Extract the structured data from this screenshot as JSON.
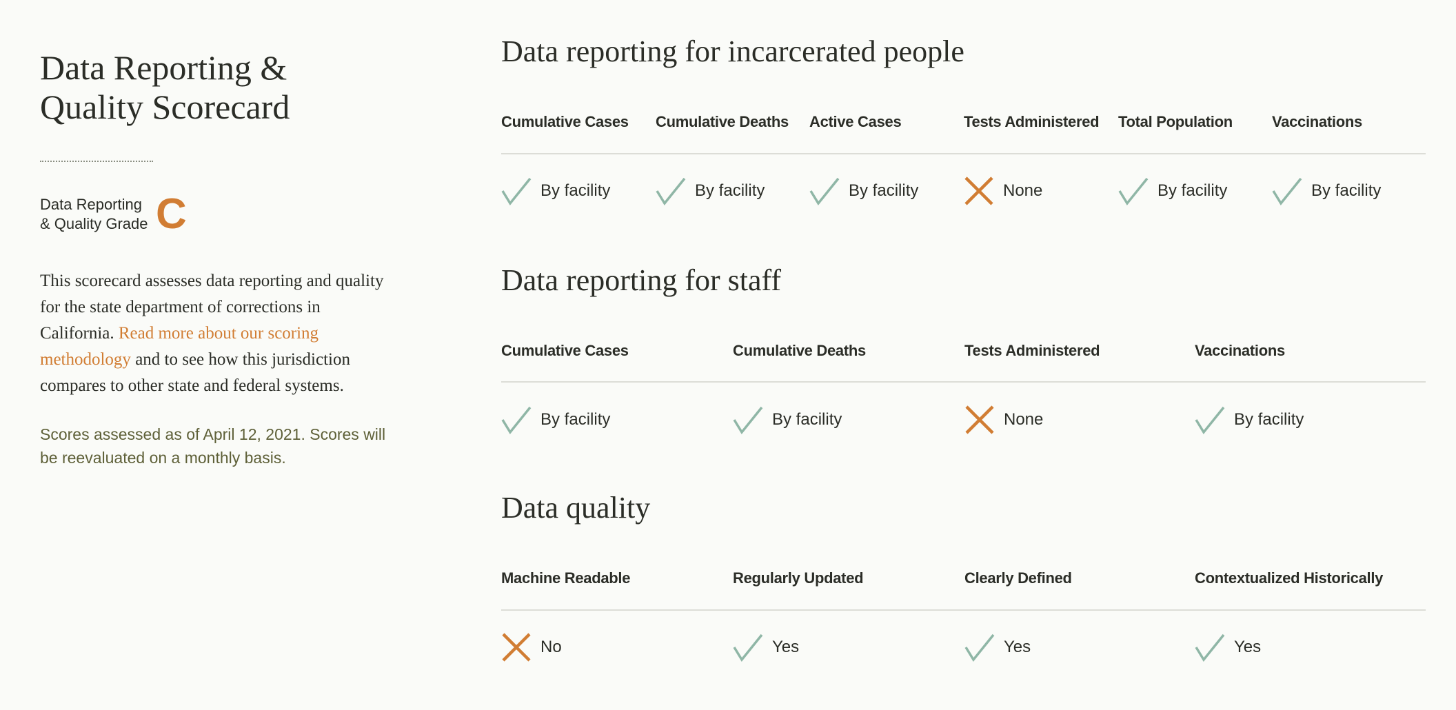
{
  "sidebar": {
    "title_line1": "Data Reporting &",
    "title_line2": "Quality Scorecard",
    "grade_label": "Data Reporting\n& Quality Grade",
    "grade": "C",
    "intro_before": "This scorecard assesses data reporting and quality for the state department of corrections in California. ",
    "intro_link": "Read more about our scoring methodology",
    "intro_after": " and to see how this jurisdiction compares to other state and federal systems.",
    "assessed_note": "Scores assessed as of April 12, 2021. Scores will be reevaluated on a monthly basis."
  },
  "colors": {
    "accent": "#d17d33",
    "check": "#8fb6a6",
    "text": "#2b2d27",
    "background": "#fafbf8"
  },
  "sections": [
    {
      "title": "Data reporting for incarcerated people",
      "columns": [
        {
          "header": "Cumulative Cases",
          "status": "check",
          "icon": "check-icon",
          "value": "By facility"
        },
        {
          "header": "Cumulative Deaths",
          "status": "check",
          "icon": "check-icon",
          "value": "By facility"
        },
        {
          "header": "Active Cases",
          "status": "check",
          "icon": "check-icon",
          "value": "By facility"
        },
        {
          "header": "Tests Administered",
          "status": "cross",
          "icon": "cross-icon",
          "value": "None"
        },
        {
          "header": "Total Population",
          "status": "check",
          "icon": "check-icon",
          "value": "By facility"
        },
        {
          "header": "Vaccinations",
          "status": "check",
          "icon": "check-icon",
          "value": "By facility"
        }
      ]
    },
    {
      "title": "Data reporting for staff",
      "columns": [
        {
          "header": "Cumulative Cases",
          "status": "check",
          "icon": "check-icon",
          "value": "By facility"
        },
        {
          "header": "Cumulative Deaths",
          "status": "check",
          "icon": "check-icon",
          "value": "By facility"
        },
        {
          "header": "Tests Administered",
          "status": "cross",
          "icon": "cross-icon",
          "value": "None"
        },
        {
          "header": "Vaccinations",
          "status": "check",
          "icon": "check-icon",
          "value": "By facility"
        }
      ]
    },
    {
      "title": "Data quality",
      "columns": [
        {
          "header": "Machine Readable",
          "status": "cross",
          "icon": "cross-icon",
          "value": "No"
        },
        {
          "header": "Regularly Updated",
          "status": "check",
          "icon": "check-icon",
          "value": "Yes"
        },
        {
          "header": "Clearly Defined",
          "status": "check",
          "icon": "check-icon",
          "value": "Yes"
        },
        {
          "header": "Contextualized Historically",
          "status": "check",
          "icon": "check-icon",
          "value": "Yes"
        }
      ]
    }
  ]
}
